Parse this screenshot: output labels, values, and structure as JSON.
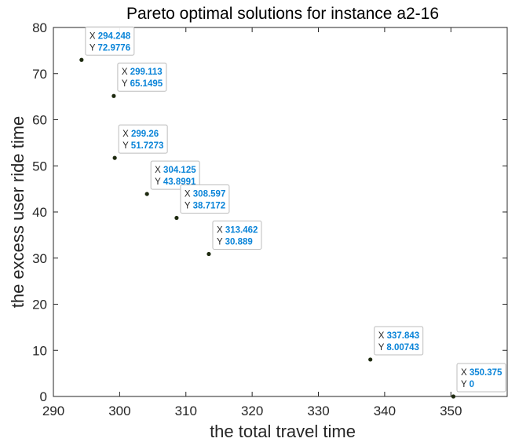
{
  "chart_data": {
    "type": "scatter",
    "title": "Pareto optimal solutions for instance a2-16",
    "xlabel": "the total travel time",
    "ylabel": "the excess user ride time",
    "xlim": [
      290,
      358.5
    ],
    "ylim": [
      0,
      80
    ],
    "xticks": [
      290,
      300,
      310,
      320,
      330,
      340,
      350
    ],
    "yticks": [
      0,
      10,
      20,
      30,
      40,
      50,
      60,
      70,
      80
    ],
    "grid": false,
    "marker_color": "#1e2a10",
    "datatip_value_color": "#0a84d8",
    "points": [
      {
        "x": 294.248,
        "y": 72.9776,
        "x_label": "294.248",
        "y_label": "72.9776"
      },
      {
        "x": 299.113,
        "y": 65.1495,
        "x_label": "299.113",
        "y_label": "65.1495"
      },
      {
        "x": 299.26,
        "y": 51.7273,
        "x_label": "299.26",
        "y_label": "51.7273"
      },
      {
        "x": 304.125,
        "y": 43.8991,
        "x_label": "304.125",
        "y_label": "43.8991"
      },
      {
        "x": 308.597,
        "y": 38.7172,
        "x_label": "308.597",
        "y_label": "38.7172"
      },
      {
        "x": 313.462,
        "y": 30.889,
        "x_label": "313.462",
        "y_label": "30.889"
      },
      {
        "x": 337.843,
        "y": 8.00743,
        "x_label": "337.843",
        "y_label": "8.00743"
      },
      {
        "x": 350.375,
        "y": 0,
        "x_label": "350.375",
        "y_label": "0"
      }
    ],
    "datatip_keys": {
      "x": "X",
      "y": "Y"
    }
  }
}
